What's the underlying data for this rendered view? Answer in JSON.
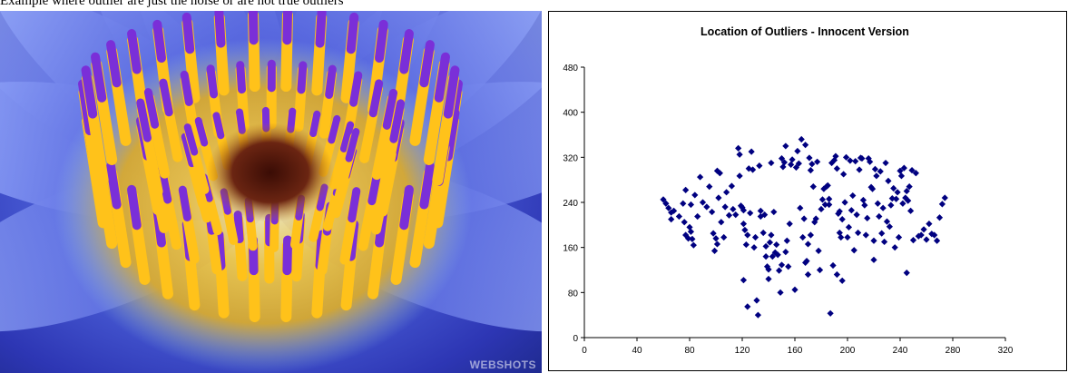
{
  "caption": "Example where outlier are just the noise or are not true outliers",
  "image": {
    "subject": "blue water lily flower macro",
    "watermark": "WEBSHOTS",
    "colors": {
      "petal": "#5a55d6",
      "stamen": "#ffc21a",
      "tip": "#7a2fd8",
      "center": "#5a1a0e"
    }
  },
  "chart_data": {
    "type": "scatter",
    "title": "Location of Outliers - Innocent Version",
    "xlabel": "",
    "ylabel": "",
    "xlim": [
      0,
      320
    ],
    "ylim": [
      0,
      480
    ],
    "xticks": [
      "0",
      "40",
      "80",
      "120",
      "160",
      "200",
      "240",
      "280",
      "320"
    ],
    "yticks": [
      "0",
      "80",
      "160",
      "240",
      "320",
      "400",
      "480"
    ],
    "grid": false,
    "legend": "none",
    "marker": "diamond",
    "marker_color": "#000080",
    "series": [
      {
        "x": [
          60,
          62,
          64,
          66,
          66,
          68,
          72,
          75,
          76,
          77,
          77,
          79,
          80,
          81,
          81,
          82,
          83,
          84,
          86,
          88,
          90,
          93,
          95,
          97,
          98,
          99,
          100,
          101,
          101,
          102,
          103,
          104,
          106,
          107,
          108,
          110,
          112,
          113,
          115,
          117,
          118,
          118,
          119,
          120,
          121,
          121,
          121,
          122,
          123,
          124,
          124,
          125,
          126,
          127,
          128,
          129,
          130,
          131,
          132,
          133,
          134,
          134,
          136,
          137,
          138,
          138,
          139,
          140,
          140,
          141,
          142,
          142,
          143,
          144,
          145,
          146,
          147,
          148,
          149,
          150,
          150,
          151,
          152,
          153,
          153,
          154,
          155,
          156,
          157,
          158,
          160,
          161,
          162,
          163,
          164,
          165,
          166,
          167,
          168,
          168,
          169,
          170,
          170,
          171,
          172,
          172,
          173,
          174,
          175,
          176,
          177,
          178,
          179,
          180,
          181,
          182,
          183,
          184,
          185,
          186,
          186,
          187,
          188,
          189,
          190,
          191,
          192,
          192,
          193,
          194,
          194,
          195,
          196,
          196,
          197,
          198,
          199,
          200,
          201,
          202,
          203,
          204,
          205,
          206,
          207,
          208,
          209,
          210,
          211,
          212,
          213,
          214,
          215,
          216,
          217,
          218,
          219,
          220,
          220,
          221,
          222,
          223,
          224,
          225,
          226,
          227,
          228,
          229,
          230,
          231,
          232,
          233,
          234,
          235,
          236,
          237,
          238,
          239,
          240,
          241,
          242,
          243,
          244,
          245,
          245,
          246,
          247,
          248,
          249,
          250,
          252,
          254,
          256,
          258,
          260,
          262,
          264,
          266,
          268,
          270,
          272,
          274
        ],
        "y": [
          245,
          238,
          230,
          222,
          210,
          225,
          215,
          238,
          205,
          182,
          262,
          176,
          196,
          188,
          236,
          175,
          164,
          253,
          215,
          285,
          240,
          232,
          268,
          223,
          185,
          154,
          176,
          296,
          166,
          248,
          292,
          205,
          178,
          232,
          258,
          217,
          269,
          228,
          218,
          336,
          287,
          325,
          234,
          231,
          226,
          202,
          102,
          191,
          165,
          55,
          182,
          300,
          221,
          330,
          298,
          160,
          178,
          66,
          40,
          305,
          225,
          215,
          186,
          218,
          162,
          144,
          126,
          121,
          104,
          169,
          182,
          310,
          144,
          223,
          151,
          165,
          147,
          119,
          80,
          129,
          318,
          303,
          311,
          152,
          340,
          172,
          126,
          202,
          307,
          316,
          85,
          302,
          331,
          309,
          230,
          352,
          178,
          211,
          342,
          133,
          136,
          166,
          112,
          319,
          182,
          297,
          308,
          268,
          205,
          211,
          312,
          154,
          120,
          228,
          245,
          264,
          236,
          268,
          270,
          246,
          236,
          43,
          310,
          128,
          315,
          322,
          112,
          300,
          220,
          186,
          224,
          178,
          210,
          101,
          290,
          240,
          320,
          178,
          196,
          314,
          226,
          252,
          155,
          313,
          218,
          186,
          298,
          319,
          318,
          244,
          235,
          182,
          212,
          318,
          312,
          267,
          264,
          138,
          172,
          299,
          287,
          238,
          215,
          295,
          185,
          230,
          170,
          310,
          206,
          278,
          197,
          235,
          247,
          265,
          160,
          246,
          258,
          178,
          296,
          287,
          238,
          301,
          248,
          115,
          260,
          243,
          268,
          225,
          297,
          173,
          292,
          180,
          182,
          192,
          174,
          202,
          184,
          182,
          172,
          213,
          237,
          248
        ]
      }
    ]
  }
}
